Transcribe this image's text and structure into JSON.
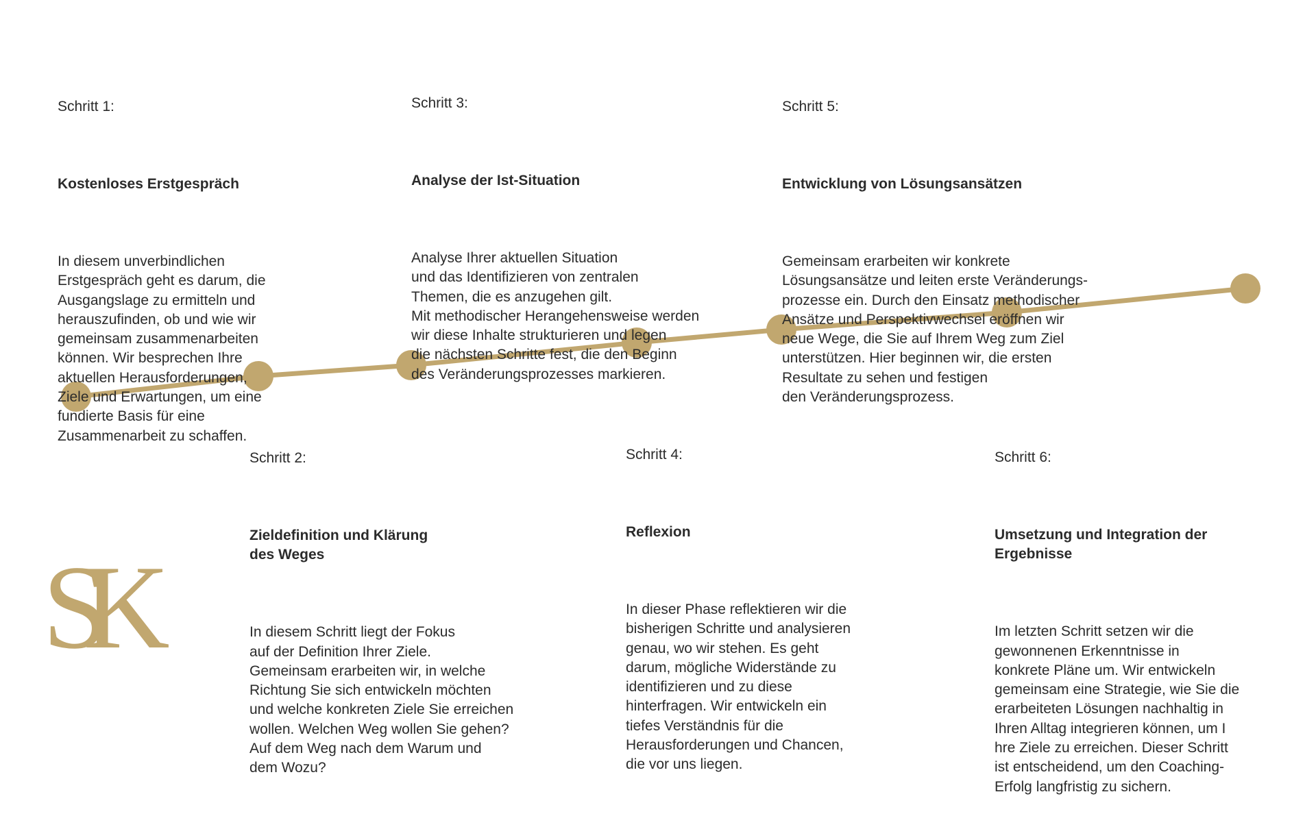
{
  "colors": {
    "accent": "#c1a76f",
    "text": "#2b2b2b"
  },
  "logo": {
    "text": "SK"
  },
  "timeline": {
    "points": 7
  },
  "steps": [
    {
      "label": "Schritt 1:",
      "title": "Kostenloses Erstgespräch",
      "body": "In diesem unverbindlichen\nErstgespräch geht es darum, die\nAusgangslage zu ermitteln und\nherauszufinden, ob und wie wir\ngemeinsam zusammenarbeiten\nkönnen. Wir besprechen Ihre\naktuellen Herausforderungen,\nZiele und Erwartungen, um eine\nfundierte Basis für eine\nZusammenarbeit zu schaffen."
    },
    {
      "label": "Schritt 2:",
      "title": "Zieldefinition und Klärung\ndes Weges",
      "body": "In diesem Schritt liegt der Fokus\nauf der Definition Ihrer Ziele.\nGemeinsam erarbeiten wir, in welche\nRichtung Sie sich entwickeln möchten\nund welche konkreten Ziele Sie erreichen\nwollen. Welchen Weg wollen Sie gehen?\nAuf dem Weg nach dem Warum und\ndem Wozu?"
    },
    {
      "label": "Schritt 3:",
      "title": "Analyse der Ist-Situation",
      "body": "Analyse Ihrer aktuellen Situation\nund das Identifizieren von zentralen\nThemen, die es anzugehen gilt.\nMit methodischer Herangehensweise werden\nwir diese Inhalte strukturieren und legen\ndie nächsten Schritte fest, die den Beginn\ndes Veränderungsprozesses markieren."
    },
    {
      "label": "Schritt 4:",
      "title": "Reflexion",
      "body": "In dieser Phase reflektieren wir die\nbisherigen Schritte und analysieren\ngenau, wo wir stehen. Es geht\ndarum, mögliche Widerstände zu\nidentifizieren und zu diese\nhinterfragen. Wir entwickeln ein\ntiefes Verständnis für die\nHerausforderungen und Chancen,\ndie vor uns liegen."
    },
    {
      "label": "Schritt 5:",
      "title": "Entwicklung von Lösungsansätzen",
      "body": "Gemeinsam erarbeiten wir konkrete\nLösungsansätze und leiten erste Veränderungs-\nprozesse ein. Durch den Einsatz methodischer\nAnsätze und Perspektivwechsel eröffnen wir\nneue Wege, die Sie auf Ihrem Weg zum Ziel\nunterstützen. Hier beginnen wir, die ersten\nResultate zu sehen und festigen\nden Veränderungsprozess."
    },
    {
      "label": "Schritt 6:",
      "title": "Umsetzung und Integration der\nErgebnisse",
      "body": "Im letzten Schritt setzen wir die\ngewonnenen Erkenntnisse in\nkonkrete Pläne um. Wir entwickeln\ngemeinsam eine Strategie, wie Sie die\nerarbeiteten Lösungen nachhaltig in\nIhren Alltag integrieren können, um I\nhre Ziele zu erreichen. Dieser Schritt\nist entscheidend, um den Coaching-\nErfolg langfristig zu sichern."
    }
  ]
}
